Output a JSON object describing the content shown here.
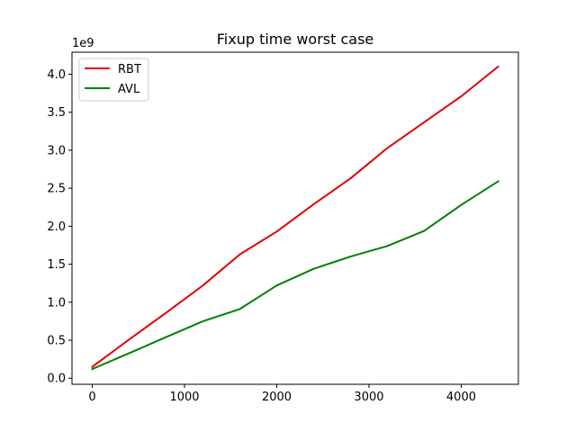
{
  "chart_data": {
    "type": "line",
    "title": "Fixup time worst case",
    "xlabel": "",
    "ylabel": "",
    "y_offset_label": "1e9",
    "xlim": [
      -220,
      4620
    ],
    "ylim": [
      -0.08,
      4.29
    ],
    "x_ticks": [
      0,
      1000,
      2000,
      3000,
      4000
    ],
    "x_tick_labels": [
      "0",
      "1000",
      "2000",
      "3000",
      "4000"
    ],
    "y_ticks": [
      0.0,
      0.5,
      1.0,
      1.5,
      2.0,
      2.5,
      3.0,
      3.5,
      4.0
    ],
    "y_tick_labels": [
      "0.0",
      "0.5",
      "1.0",
      "1.5",
      "2.0",
      "2.5",
      "3.0",
      "3.5",
      "4.0"
    ],
    "grid": false,
    "legend_position": "top-left",
    "x": [
      0,
      400,
      800,
      1200,
      1600,
      2000,
      2400,
      2800,
      3200,
      3600,
      4000,
      4400
    ],
    "series": [
      {
        "name": "RBT",
        "color": "#e00000",
        "values": [
          0.15,
          0.51,
          0.86,
          1.22,
          1.63,
          1.93,
          2.29,
          2.63,
          3.03,
          3.37,
          3.71,
          4.1
        ]
      },
      {
        "name": "AVL",
        "color": "#008000",
        "values": [
          0.12,
          0.33,
          0.54,
          0.75,
          0.91,
          1.22,
          1.44,
          1.6,
          1.74,
          1.94,
          2.28,
          2.59
        ]
      }
    ]
  }
}
